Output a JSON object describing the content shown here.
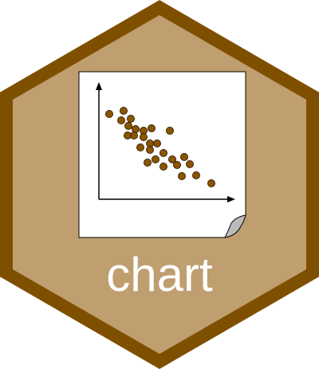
{
  "logo": {
    "label": "chart"
  }
}
